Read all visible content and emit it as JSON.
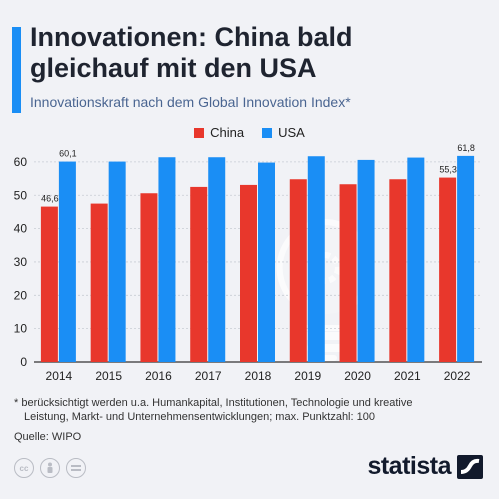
{
  "header": {
    "title_line1": "Innovationen: China bald",
    "title_line2": "gleichauf mit den USA",
    "subtitle": "Innovationskraft nach dem Global Innovation Index*"
  },
  "chart_data": {
    "type": "bar",
    "categories": [
      "2014",
      "2015",
      "2016",
      "2017",
      "2018",
      "2019",
      "2020",
      "2021",
      "2022"
    ],
    "series": [
      {
        "name": "China",
        "color": "#e8372c",
        "values": [
          46.6,
          47.5,
          50.6,
          52.5,
          53.1,
          54.8,
          53.3,
          54.8,
          55.3
        ]
      },
      {
        "name": "USA",
        "color": "#1a8ef5",
        "values": [
          60.1,
          60.1,
          61.4,
          61.4,
          59.8,
          61.7,
          60.6,
          61.3,
          61.8
        ]
      }
    ],
    "data_labels": [
      {
        "series": 0,
        "index": 0,
        "text": "46,6"
      },
      {
        "series": 1,
        "index": 0,
        "text": "60,1"
      },
      {
        "series": 0,
        "index": 8,
        "text": "55,3"
      },
      {
        "series": 1,
        "index": 8,
        "text": "61,8"
      }
    ],
    "yticks": [
      0,
      10,
      20,
      30,
      40,
      50,
      60
    ],
    "ylim": [
      0,
      65
    ],
    "legend_position": "top-center",
    "grid": true
  },
  "footnote": {
    "line1": "* berücksichtigt werden u.a. Humankapital, Institutionen, Technologie und kreative",
    "line2": "Leistung, Markt- und Unternehmensentwicklungen; max. Punktzahl: 100"
  },
  "source": "Quelle: WIPO",
  "brand": {
    "name": "statista"
  },
  "icons": [
    "cc-icon",
    "person-icon",
    "equals-icon",
    "lightbulb-icon",
    "statista-logo-icon"
  ]
}
